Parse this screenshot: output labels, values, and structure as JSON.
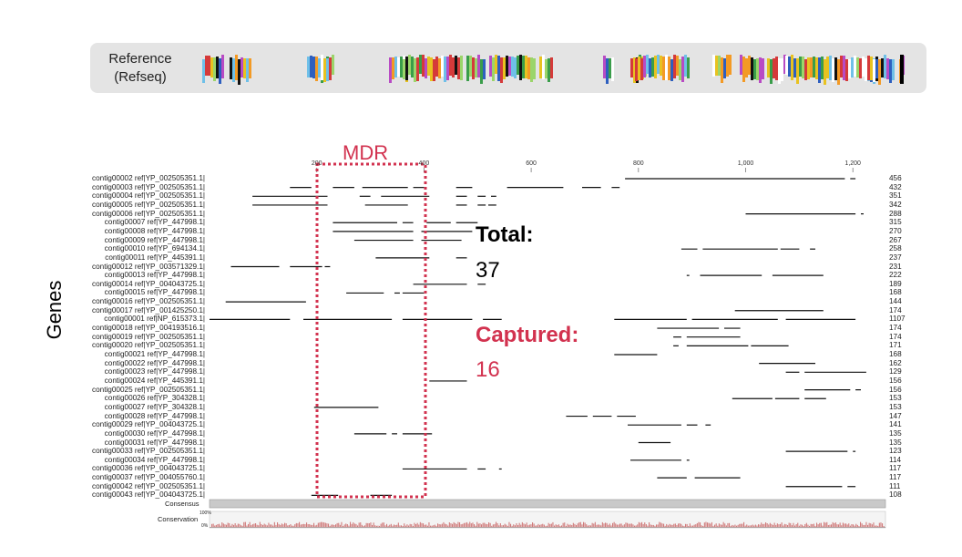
{
  "reference": {
    "label_line1": "Reference",
    "label_line2": "(Refseq)"
  },
  "mdr_label": "MDR",
  "genes_label": "Genes",
  "total": {
    "label": "Total:",
    "value": "37"
  },
  "captured": {
    "label": "Captured:",
    "value": "16"
  },
  "colors": {
    "accent": "#d2324f",
    "read": "#111111",
    "panel": "#e4e4e4"
  },
  "axis": {
    "ticks": [
      "200",
      "400",
      "600",
      "800",
      "1,000",
      "1,200"
    ],
    "tick_values": [
      200,
      400,
      600,
      800,
      1000,
      1200
    ],
    "max": 1270
  },
  "track_labels": {
    "consensus": "Consensus",
    "conservation": "Conservation",
    "pct_100": "100%",
    "pct_0": "0%"
  },
  "contigs": [
    {
      "name": "contig00002 ref|YP_002505351.1|",
      "length": "456"
    },
    {
      "name": "contig00003 ref|YP_002505351.1|",
      "length": "432"
    },
    {
      "name": "contig00004 ref|YP_002505351.1|",
      "length": "351"
    },
    {
      "name": "contig00005 ref|YP_002505351.1|",
      "length": "342"
    },
    {
      "name": "contig00006 ref|YP_002505351.1|",
      "length": "288"
    },
    {
      "name": "contig00007 ref|YP_447998.1|",
      "length": "315"
    },
    {
      "name": "contig00008 ref|YP_447998.1|",
      "length": "270"
    },
    {
      "name": "contig00009 ref|YP_447998.1|",
      "length": "267"
    },
    {
      "name": "contig00010 ref|YP_694134.1|",
      "length": "258"
    },
    {
      "name": "contig00011 ref|YP_445391.1|",
      "length": "237"
    },
    {
      "name": "contig00012 ref|YP_003571329.1|",
      "length": "231"
    },
    {
      "name": "contig00013 ref|YP_447998.1|",
      "length": "222"
    },
    {
      "name": "contig00014 ref|YP_004043725.1|",
      "length": "189"
    },
    {
      "name": "contig00015 ref|YP_447998.1|",
      "length": "168"
    },
    {
      "name": "contig00016 ref|YP_002505351.1|",
      "length": "144"
    },
    {
      "name": "contig00017 ref|YP_001425250.1|",
      "length": "174"
    },
    {
      "name": "contig00001 ref|NP_615373.1|",
      "length": "1107"
    },
    {
      "name": "contig00018 ref|YP_004193516.1|",
      "length": "174"
    },
    {
      "name": "contig00019 ref|YP_002505351.1|",
      "length": "174"
    },
    {
      "name": "contig00020 ref|YP_002505351.1|",
      "length": "171"
    },
    {
      "name": "contig00021 ref|YP_447998.1|",
      "length": "168"
    },
    {
      "name": "contig00022 ref|YP_447998.1|",
      "length": "162"
    },
    {
      "name": "contig00023 ref|YP_447998.1|",
      "length": "129"
    },
    {
      "name": "contig00024 ref|YP_445391.1|",
      "length": "156"
    },
    {
      "name": "contig00025 ref|YP_002505351.1|",
      "length": "156"
    },
    {
      "name": "contig00026 ref|YP_304328.1|",
      "length": "153"
    },
    {
      "name": "contig00027 ref|YP_304328.1|",
      "length": "153"
    },
    {
      "name": "contig00028 ref|YP_447998.1|",
      "length": "147"
    },
    {
      "name": "contig00029 ref|YP_004043725.1|",
      "length": "141"
    },
    {
      "name": "contig00030 ref|YP_447998.1|",
      "length": "135"
    },
    {
      "name": "contig00031 ref|YP_447998.1|",
      "length": "135"
    },
    {
      "name": "contig00033 ref|YP_002505351.1|",
      "length": "123"
    },
    {
      "name": "contig00034 ref|YP_447998.1|",
      "length": "114"
    },
    {
      "name": "contig00036 ref|YP_004043725.1|",
      "length": "117"
    },
    {
      "name": "contig00037 ref|YP_004055760.1|",
      "length": "117"
    },
    {
      "name": "contig00042 ref|YP_002505351.1|",
      "length": "111"
    },
    {
      "name": "contig00043 ref|YP_004043725.1|",
      "length": "108"
    }
  ],
  "segments": [
    [
      [
        775,
        1185
      ],
      [
        1195,
        1205
      ]
    ],
    [
      [
        150,
        190
      ],
      [
        230,
        270
      ],
      [
        285,
        370
      ],
      [
        380,
        400
      ],
      [
        460,
        490
      ],
      [
        555,
        660
      ],
      [
        695,
        730
      ],
      [
        750,
        765
      ]
    ],
    [
      [
        80,
        220
      ],
      [
        280,
        300
      ],
      [
        320,
        410
      ],
      [
        460,
        480
      ],
      [
        500,
        515
      ],
      [
        525,
        535
      ]
    ],
    [
      [
        80,
        220
      ],
      [
        290,
        370
      ],
      [
        460,
        480
      ],
      [
        500,
        515
      ],
      [
        520,
        535
      ]
    ],
    [
      [
        1000,
        1205
      ],
      [
        1215,
        1220
      ]
    ],
    [
      [
        230,
        350
      ],
      [
        360,
        380
      ],
      [
        405,
        450
      ],
      [
        460,
        500
      ]
    ],
    [
      [
        230,
        380
      ],
      [
        395,
        490
      ]
    ],
    [
      [
        270,
        380
      ],
      [
        395,
        470
      ]
    ],
    [
      [
        880,
        910
      ],
      [
        920,
        1060
      ],
      [
        1065,
        1100
      ],
      [
        1120,
        1130
      ]
    ],
    [
      [
        310,
        410
      ],
      [
        460,
        480
      ]
    ],
    [
      [
        40,
        130
      ],
      [
        150,
        210
      ],
      [
        215,
        225
      ]
    ],
    [
      [
        890,
        895
      ],
      [
        915,
        1030
      ],
      [
        1050,
        1145
      ]
    ],
    [
      [
        380,
        480
      ],
      [
        500,
        515
      ]
    ],
    [
      [
        255,
        325
      ],
      [
        345,
        355
      ],
      [
        360,
        400
      ]
    ],
    [
      [
        30,
        180
      ]
    ],
    [
      [
        980,
        1145
      ]
    ],
    [
      [
        0,
        150
      ],
      [
        175,
        340
      ],
      [
        360,
        490
      ],
      [
        510,
        545
      ],
      [
        755,
        890
      ],
      [
        900,
        1060
      ],
      [
        1075,
        1205
      ]
    ],
    [
      [
        835,
        950
      ],
      [
        960,
        990
      ]
    ],
    [
      [
        865,
        880
      ],
      [
        890,
        990
      ]
    ],
    [
      [
        865,
        875
      ],
      [
        890,
        1005
      ],
      [
        1010,
        1080
      ]
    ],
    [
      [
        755,
        835
      ]
    ],
    [
      [
        1025,
        1130
      ]
    ],
    [
      [
        1075,
        1100
      ],
      [
        1110,
        1225
      ]
    ],
    [
      [
        410,
        480
      ]
    ],
    [
      [
        1110,
        1195
      ],
      [
        1205,
        1215
      ]
    ],
    [
      [
        975,
        1050
      ],
      [
        1055,
        1100
      ],
      [
        1110,
        1150
      ]
    ],
    [
      [
        195,
        315
      ]
    ],
    [
      [
        665,
        705
      ],
      [
        715,
        750
      ],
      [
        760,
        795
      ]
    ],
    [
      [
        780,
        880
      ],
      [
        890,
        910
      ],
      [
        925,
        935
      ]
    ],
    [
      [
        270,
        330
      ],
      [
        340,
        350
      ],
      [
        360,
        415
      ]
    ],
    [
      [
        800,
        860
      ]
    ],
    [
      [
        1075,
        1190
      ],
      [
        1200,
        1205
      ]
    ],
    [
      [
        785,
        880
      ],
      [
        890,
        895
      ]
    ],
    [
      [
        360,
        480
      ],
      [
        500,
        515
      ],
      [
        540,
        545
      ]
    ],
    [
      [
        835,
        890
      ],
      [
        905,
        990
      ]
    ],
    [
      [
        1075,
        1180
      ],
      [
        1190,
        1205
      ]
    ],
    [
      [
        190,
        240
      ],
      [
        300,
        340
      ]
    ]
  ]
}
